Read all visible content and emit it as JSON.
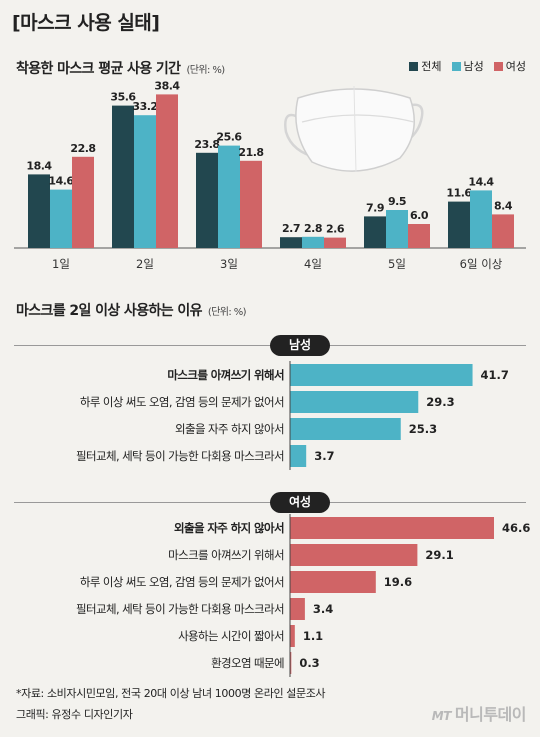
{
  "header": {
    "title": "[마스크 사용 실태]",
    "chart1_title": "착용한 마스크 평균 사용 기간",
    "chart1_unit": "(단위: %)",
    "chart2_title": "마스크를 2일 이상 사용하는 이유",
    "chart2_unit": "(단위: %)"
  },
  "legend": [
    {
      "label": "전체",
      "color": "#22474f"
    },
    {
      "label": "남성",
      "color": "#4db3c6"
    },
    {
      "label": "여성",
      "color": "#d06466"
    }
  ],
  "chart_data": [
    {
      "type": "bar",
      "title": "착용한 마스크 평균 사용 기간",
      "unit": "(단위: %)",
      "categories": [
        "1일",
        "2일",
        "3일",
        "4일",
        "5일",
        "6일 이상"
      ],
      "series": [
        {
          "name": "전체",
          "color": "#22474f",
          "values": [
            18.4,
            35.6,
            23.8,
            2.7,
            7.9,
            11.6
          ]
        },
        {
          "name": "남성",
          "color": "#4db3c6",
          "values": [
            14.6,
            33.2,
            25.6,
            2.8,
            9.5,
            14.4
          ]
        },
        {
          "name": "여성",
          "color": "#d06466",
          "values": [
            22.8,
            38.4,
            21.8,
            2.6,
            6.0,
            8.4
          ]
        }
      ],
      "ylim": [
        0,
        40
      ]
    },
    {
      "type": "bar",
      "orientation": "horizontal",
      "title": "마스크를 2일 이상 사용하는 이유",
      "unit": "(단위: %)",
      "group": "남성",
      "color": "#4db3c6",
      "categories": [
        "마스크를 아껴쓰기 위해서",
        "하루 이상 써도 오염, 감염 등의 문제가 없어서",
        "외출을 자주 하지 않아서",
        "필터교체, 세탁 등이 가능한 다회용 마스크라서"
      ],
      "values": [
        41.7,
        29.3,
        25.3,
        3.7
      ]
    },
    {
      "type": "bar",
      "orientation": "horizontal",
      "title": "마스크를 2일 이상 사용하는 이유",
      "unit": "(단위: %)",
      "group": "여성",
      "color": "#d06466",
      "categories": [
        "외출을 자주 하지 않아서",
        "마스크를 아껴쓰기 위해서",
        "하루 이상 써도 오염, 감염 등의 문제가 없어서",
        "필터교체, 세탁 등이 가능한 다회용 마스크라서",
        "사용하는 시간이 짧아서",
        "환경오염 때문에"
      ],
      "values": [
        46.6,
        29.1,
        19.6,
        3.4,
        1.1,
        0.3
      ]
    }
  ],
  "footer": {
    "source": "*자료: 소비자시민모임, 전국 20대 이상 남녀 1000명 온라인 설문조사",
    "credit": "그래픽: 유정수 디자인기자"
  },
  "brand": {
    "logo": "MT",
    "name": "머니투데이"
  }
}
